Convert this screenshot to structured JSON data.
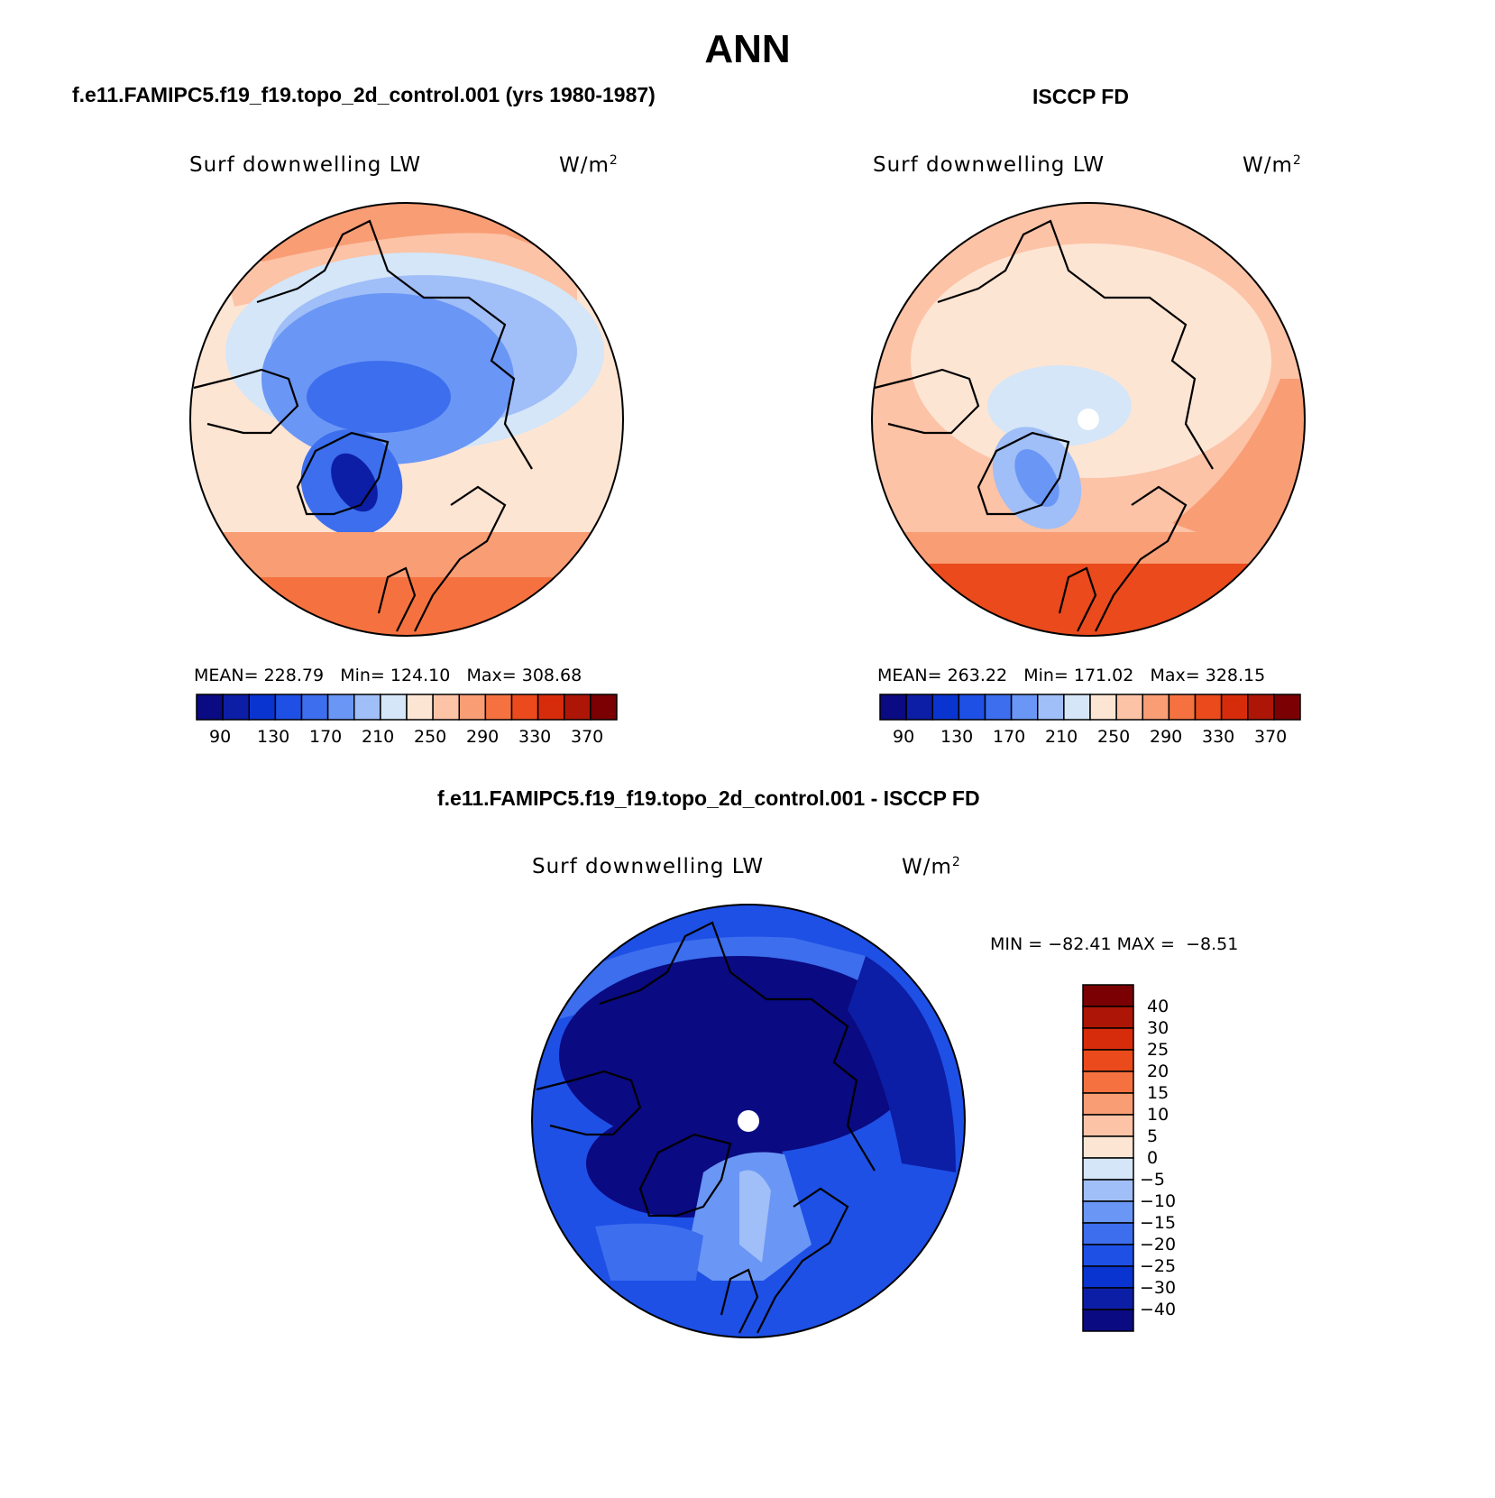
{
  "header": {
    "title": "ANN"
  },
  "colors": {
    "seq": [
      "#0a0a82",
      "#0c1ea6",
      "#0a34d0",
      "#1e50e6",
      "#3c6eee",
      "#6a96f5",
      "#a0bef7",
      "#d4e6f8",
      "#fde5d4",
      "#fcc3a6",
      "#f99d75",
      "#f57240",
      "#ea4a1c",
      "#d62c0c",
      "#ad1606",
      "#7a0004"
    ],
    "diff": [
      "#0a0a82",
      "#0c1ea6",
      "#0a34d0",
      "#1e50e6",
      "#3c6eee",
      "#6a96f5",
      "#a0bef7",
      "#d4e6f8",
      "#fde5d4",
      "#fcc3a6",
      "#f99d75",
      "#f57240",
      "#ea4a1c",
      "#d62c0c",
      "#ad1606",
      "#7a0004"
    ]
  },
  "panels": [
    {
      "case_title": "f.e11.FAMIPC5.f19_f19.topo_2d_control.001 (yrs 1980-1987)",
      "variable": "Surf downwelling LW",
      "units_base": "W/m",
      "units_exp": "2",
      "stats": {
        "mean_label": "MEAN=",
        "mean": "228.79",
        "min_label": "Min=",
        "min": "124.10",
        "max_label": "Max=",
        "max": "308.68"
      },
      "colorbar_ticks": [
        "90",
        "130",
        "170",
        "210",
        "250",
        "290",
        "330",
        "370"
      ]
    },
    {
      "case_title": "ISCCP FD",
      "variable": "Surf downwelling LW",
      "units_base": "W/m",
      "units_exp": "2",
      "stats": {
        "mean_label": "MEAN=",
        "mean": "263.22",
        "min_label": "Min=",
        "min": "171.02",
        "max_label": "Max=",
        "max": "328.15"
      },
      "colorbar_ticks": [
        "90",
        "130",
        "170",
        "210",
        "250",
        "290",
        "330",
        "370"
      ]
    }
  ],
  "diff_panel": {
    "case_title": "f.e11.FAMIPC5.f19_f19.topo_2d_control.001 - ISCCP FD",
    "variable": "Surf downwelling LW",
    "units_base": "W/m",
    "units_exp": "2",
    "stats": {
      "min_label": "MIN =",
      "min": "−82.41",
      "max_label": "MAX =",
      "max": "−8.51"
    },
    "colorbar_ticks": [
      "40",
      "30",
      "25",
      "20",
      "15",
      "10",
      "5",
      "0",
      "−5",
      "−10",
      "−15",
      "−20",
      "−25",
      "−30",
      "−40"
    ]
  }
}
